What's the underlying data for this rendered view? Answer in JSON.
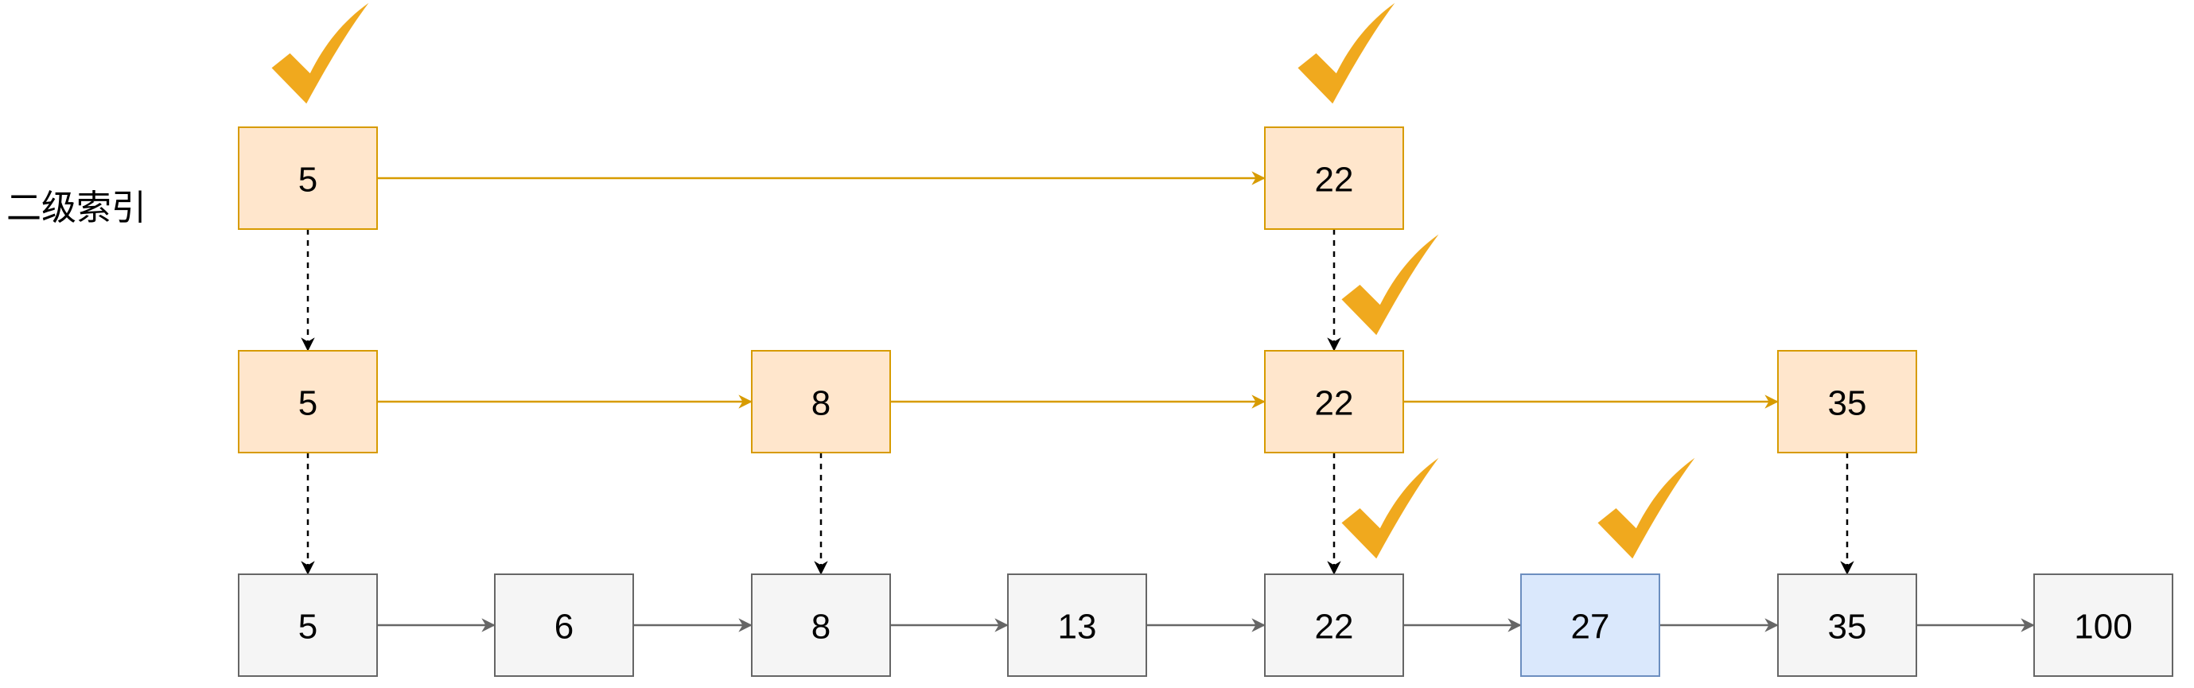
{
  "label": "二级索引",
  "levels": [
    {
      "name": "index-level-2",
      "nodes": [
        {
          "value": "5",
          "checked": true
        },
        {
          "value": "22",
          "checked": true
        }
      ]
    },
    {
      "name": "index-level-1",
      "nodes": [
        {
          "value": "5",
          "checked": false
        },
        {
          "value": "8",
          "checked": false
        },
        {
          "value": "22",
          "checked": true
        },
        {
          "value": "35",
          "checked": false
        }
      ]
    },
    {
      "name": "base-list",
      "nodes": [
        {
          "value": "5",
          "checked": false
        },
        {
          "value": "6",
          "checked": false
        },
        {
          "value": "8",
          "checked": false
        },
        {
          "value": "13",
          "checked": false
        },
        {
          "value": "22",
          "checked": true
        },
        {
          "value": "27",
          "checked": true,
          "highlight": true
        },
        {
          "value": "35",
          "checked": false
        },
        {
          "value": "100",
          "checked": false
        }
      ]
    }
  ],
  "colors": {
    "index_fill": "#ffe6cc",
    "index_stroke": "#d79b00",
    "base_fill": "#f5f5f5",
    "base_stroke": "#666666",
    "target_fill": "#dae8fc",
    "target_stroke": "#6c8ebf",
    "index_arrow": "#d79b00",
    "base_arrow": "#666666",
    "down_arrow": "#000000",
    "check": "#f0a91e"
  },
  "icons": {
    "check": "check-mark-icon"
  }
}
